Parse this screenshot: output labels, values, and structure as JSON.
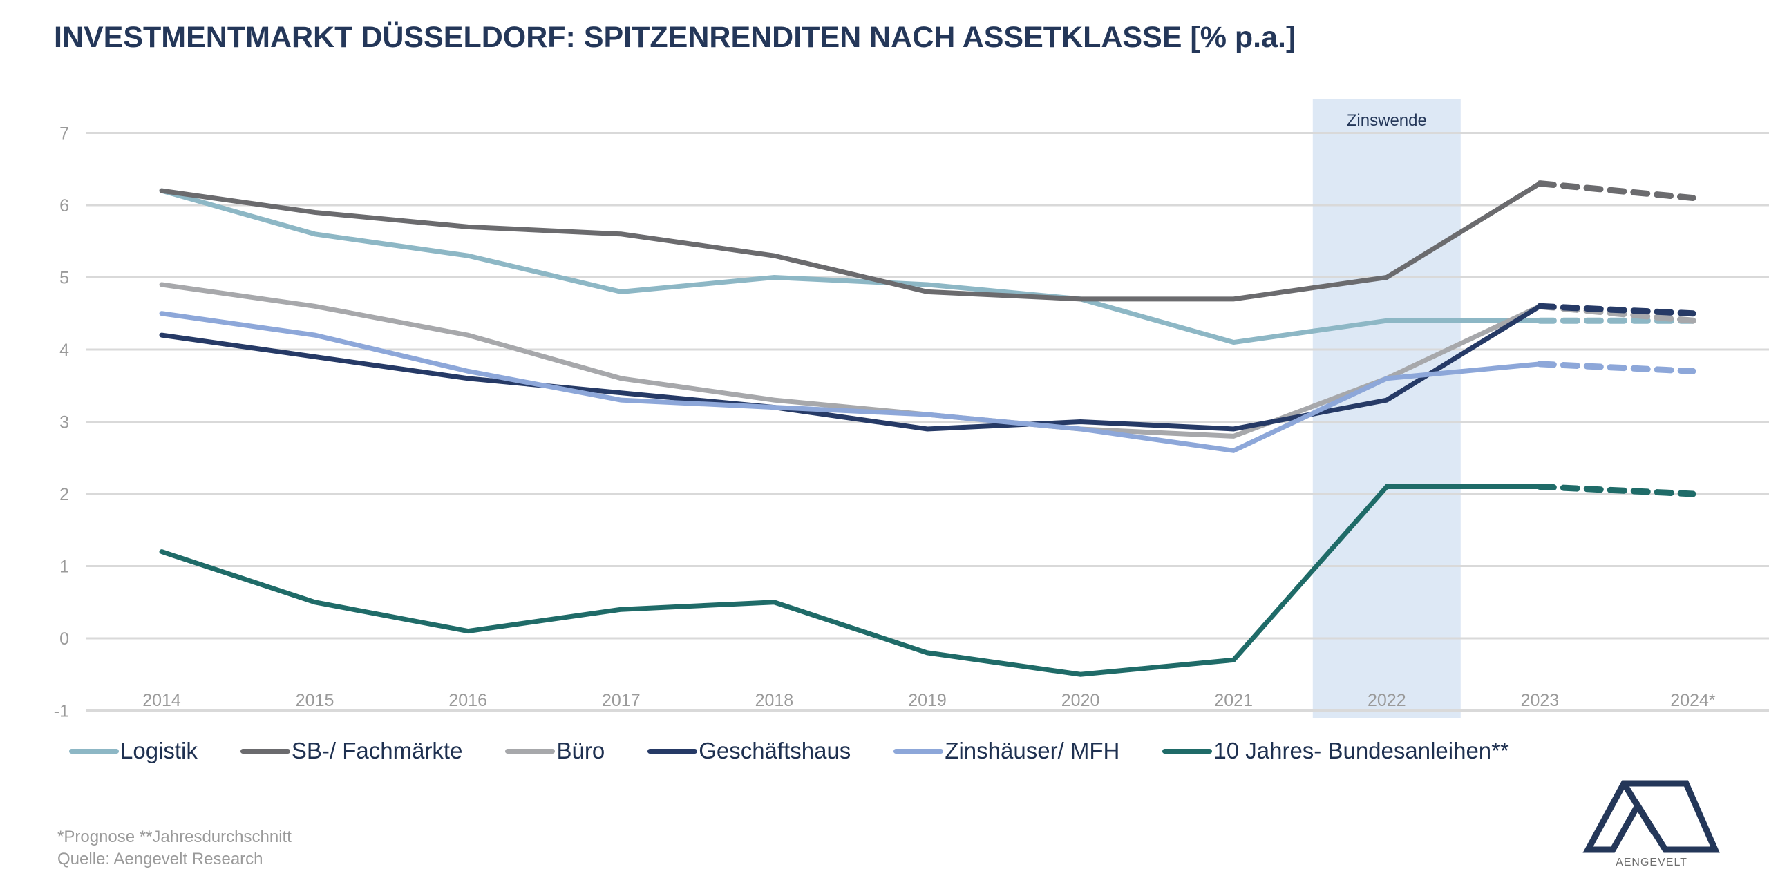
{
  "header": {
    "title": "INVESTMENTMARKT DÜSSELDORF: SPITZENRENDITEN NACH ASSETKLASSE [% p.a.]"
  },
  "chart_data": {
    "type": "line",
    "title": "INVESTMENTMARKT DÜSSELDORF: SPITZENRENDITEN NACH ASSETKLASSE [% p.a.]",
    "xlabel": "",
    "ylabel": "% p.a.",
    "categories": [
      "2014",
      "2015",
      "2016",
      "2017",
      "2018",
      "2019",
      "2020",
      "2021",
      "2022",
      "2023",
      "2024*"
    ],
    "yticks": [
      -1,
      0,
      1,
      2,
      3,
      4,
      5,
      6,
      7
    ],
    "ylim": [
      -1,
      7
    ],
    "grid": true,
    "legend_position": "bottom",
    "forecast_from_index": 9,
    "highlight": {
      "label": "Zinswende",
      "category": "2022",
      "color": "#dde8f5"
    },
    "series": [
      {
        "name": "Logistik",
        "color": "#8db7c5",
        "values": [
          6.2,
          5.6,
          5.3,
          4.8,
          5.0,
          4.9,
          4.7,
          4.1,
          4.4,
          4.4,
          4.4
        ]
      },
      {
        "name": "SB-/ Fachmärkte",
        "color": "#6b6b6e",
        "values": [
          6.2,
          5.9,
          5.7,
          5.6,
          5.3,
          4.8,
          4.7,
          4.7,
          5.0,
          6.3,
          6.1
        ]
      },
      {
        "name": "Büro",
        "color": "#a7a8ab",
        "values": [
          4.9,
          4.6,
          4.2,
          3.6,
          3.3,
          3.1,
          2.9,
          2.8,
          3.6,
          4.6,
          4.4
        ]
      },
      {
        "name": "Geschäftshaus",
        "color": "#263a66",
        "values": [
          4.2,
          3.9,
          3.6,
          3.4,
          3.2,
          2.9,
          3.0,
          2.9,
          3.3,
          4.6,
          4.5
        ]
      },
      {
        "name": "Zinshäuser/ MFH",
        "color": "#8da7d9",
        "values": [
          4.5,
          4.2,
          3.7,
          3.3,
          3.2,
          3.1,
          2.9,
          2.6,
          3.6,
          3.8,
          3.7
        ]
      },
      {
        "name": "10 Jahres- Bundesanleihen**",
        "color": "#1f6b68",
        "values": [
          1.2,
          0.5,
          0.1,
          0.4,
          0.5,
          -0.2,
          -0.5,
          -0.3,
          2.1,
          2.1,
          2.0
        ]
      }
    ]
  },
  "footer": {
    "note": "*Prognose **Jahresdurchschnitt",
    "source": "Quelle: Aengevelt Research"
  },
  "logo": {
    "name": "AENGEVELT",
    "color": "#243759"
  }
}
